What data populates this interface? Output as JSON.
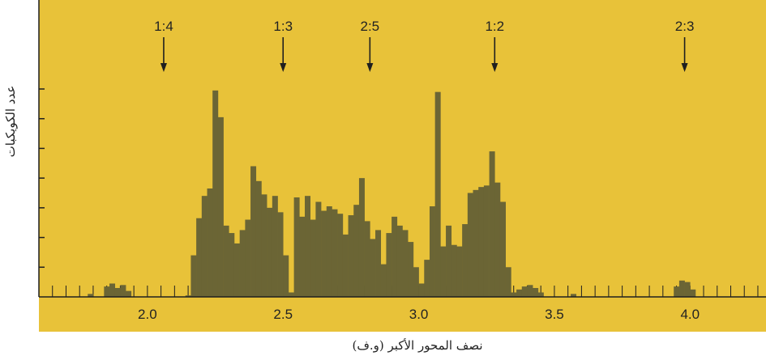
{
  "chart_data": {
    "type": "bar",
    "title": "",
    "xlabel": "نصف المحور الأكبر (و.ف)",
    "ylabel": "عدد الكويكبات",
    "xlim": [
      1.6,
      4.28
    ],
    "ylim": [
      0,
      7
    ],
    "x_ticks": [
      2.0,
      2.5,
      3.0,
      3.5,
      4.0
    ],
    "x_tick_labels": [
      "2.0",
      "2.5",
      "3.0",
      "3.5",
      "4.0"
    ],
    "y_ticks": [
      1,
      2,
      3,
      4,
      5,
      6,
      7
    ],
    "grid": false,
    "bin_width": 0.02,
    "bins_start": 2.14,
    "values": [
      0.05,
      1.4,
      2.65,
      3.4,
      3.65,
      6.95,
      6.05,
      2.4,
      2.15,
      1.8,
      2.25,
      2.6,
      4.4,
      3.9,
      3.45,
      3.0,
      3.4,
      2.85,
      1.4,
      0.15,
      3.35,
      2.7,
      3.4,
      2.6,
      3.2,
      2.9,
      3.05,
      2.95,
      2.8,
      2.1,
      2.75,
      3.1,
      4.0,
      2.55,
      1.95,
      2.25,
      1.1,
      2.15,
      2.7,
      2.4,
      2.25,
      1.85,
      1.0,
      0.45,
      1.25,
      3.05,
      6.9,
      1.7,
      2.4,
      1.75,
      1.7,
      2.45,
      3.5,
      3.6,
      3.7,
      3.75,
      4.9,
      3.85,
      3.2,
      1.0,
      0.15
    ],
    "minor_bins": [
      {
        "x": 1.78,
        "v": 0.1
      },
      {
        "x": 1.84,
        "v": 0.35
      },
      {
        "x": 1.86,
        "v": 0.45
      },
      {
        "x": 1.88,
        "v": 0.3
      },
      {
        "x": 1.9,
        "v": 0.4
      },
      {
        "x": 1.92,
        "v": 0.2
      },
      {
        "x": 3.36,
        "v": 0.25
      },
      {
        "x": 3.38,
        "v": 0.35
      },
      {
        "x": 3.4,
        "v": 0.4
      },
      {
        "x": 3.42,
        "v": 0.3
      },
      {
        "x": 3.44,
        "v": 0.15
      },
      {
        "x": 3.56,
        "v": 0.1
      },
      {
        "x": 3.94,
        "v": 0.35
      },
      {
        "x": 3.96,
        "v": 0.55
      },
      {
        "x": 3.98,
        "v": 0.5
      },
      {
        "x": 4.0,
        "v": 0.25
      }
    ],
    "resonances": [
      {
        "label": "1:4",
        "a": 2.06
      },
      {
        "label": "1:3",
        "a": 2.5
      },
      {
        "label": "2:5",
        "a": 2.82
      },
      {
        "label": "1:2",
        "a": 3.28
      },
      {
        "label": "2:3",
        "a": 3.98
      }
    ]
  },
  "colors": {
    "plot_background": "#e8c239",
    "bar_fill": "#6b6535",
    "axis": "#1f1f1f",
    "outer_background": "#ffffff"
  }
}
